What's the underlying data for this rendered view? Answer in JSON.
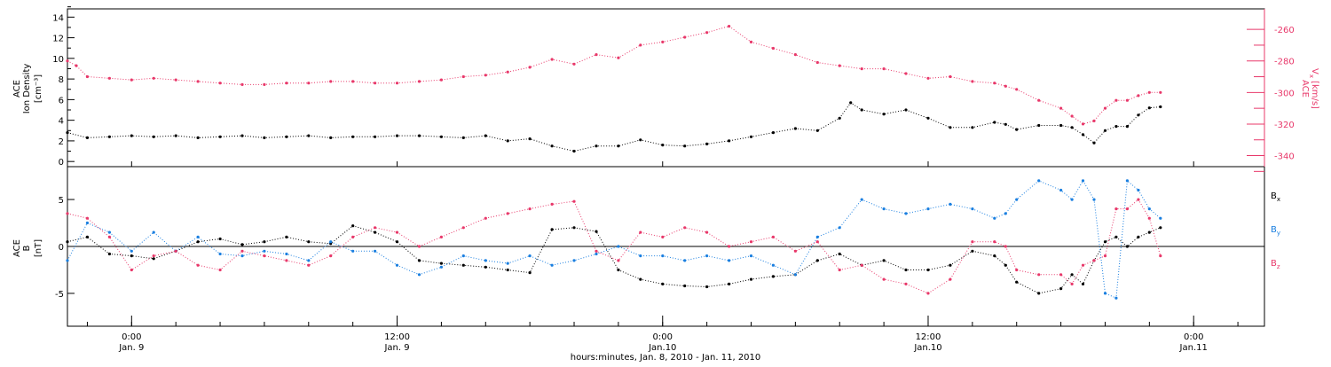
{
  "colors": {
    "black": "#000000",
    "pink": "#e8386a",
    "blue": "#1a7fe0"
  },
  "xaxis": {
    "time_label": "hours:minutes, Jan.  8, 2010 - Jan. 11, 2010",
    "ticks": [
      {
        "hour": 24,
        "time": "0:00",
        "day": "Jan. 9"
      },
      {
        "hour": 36,
        "time": "12:00",
        "day": "Jan. 9"
      },
      {
        "hour": 48,
        "time": "0:00",
        "day": "Jan.10"
      },
      {
        "hour": 60,
        "time": "12:00",
        "day": "Jan.10"
      },
      {
        "hour": 72,
        "time": "0:00",
        "day": "Jan.11"
      }
    ]
  },
  "chart_data": [
    {
      "type": "scatter",
      "panel": "top",
      "xlim_hours": [
        21.1,
        75.2
      ],
      "ylabel": [
        "ACE",
        "Ion Density",
        "[cm⁻³]"
      ],
      "ylim": [
        -0.5,
        14.8
      ],
      "yticks": [
        0,
        2,
        4,
        6,
        8,
        10,
        12,
        14
      ],
      "y2label": [
        "ACE",
        "V",
        "x",
        "[km/s]"
      ],
      "y2lim": [
        -347,
        -247
      ],
      "y2ticks": [
        -340,
        -320,
        -300,
        -280,
        -260
      ],
      "series": [
        {
          "name": "Ion Density",
          "color": "#000000",
          "axis": "left",
          "x_hours": [
            21.1,
            22,
            23,
            24,
            25,
            26,
            27,
            28,
            29,
            30,
            31,
            32,
            33,
            34,
            35,
            36,
            37,
            38,
            39,
            40,
            41,
            42,
            43,
            44,
            45,
            46,
            47,
            48,
            49,
            50,
            51,
            52,
            53,
            54,
            55,
            56,
            56.5,
            57,
            58,
            59,
            60,
            61,
            62,
            63,
            63.5,
            64,
            65,
            66,
            66.5,
            67,
            67.5,
            68,
            68.5,
            69,
            69.5,
            70,
            70.5
          ],
          "values": [
            2.8,
            2.3,
            2.4,
            2.5,
            2.4,
            2.5,
            2.3,
            2.4,
            2.5,
            2.3,
            2.4,
            2.5,
            2.3,
            2.4,
            2.4,
            2.5,
            2.5,
            2.4,
            2.3,
            2.5,
            2.0,
            2.2,
            1.5,
            1.0,
            1.5,
            1.5,
            2.1,
            1.6,
            1.5,
            1.7,
            2.0,
            2.4,
            2.8,
            3.2,
            3.0,
            4.2,
            5.7,
            5.0,
            4.6,
            5.0,
            4.2,
            3.3,
            3.3,
            3.8,
            3.6,
            3.1,
            3.5,
            3.5,
            3.3,
            2.6,
            1.8,
            3.0,
            3.4,
            3.4,
            4.5,
            5.2,
            5.3
          ]
        },
        {
          "name": "Vx",
          "color": "#e8386a",
          "axis": "right",
          "x_hours": [
            21.1,
            21.5,
            22,
            23,
            24,
            25,
            26,
            27,
            28,
            29,
            30,
            31,
            32,
            33,
            34,
            35,
            36,
            37,
            38,
            39,
            40,
            41,
            42,
            43,
            44,
            45,
            46,
            47,
            48,
            49,
            50,
            51,
            52,
            53,
            54,
            55,
            56,
            57,
            58,
            59,
            60,
            61,
            62,
            63,
            63.5,
            64,
            65,
            66,
            66.5,
            67,
            67.5,
            68,
            68.5,
            69,
            69.5,
            70,
            70.5
          ],
          "values": [
            -280,
            -283,
            -290,
            -291,
            -292,
            -291,
            -292,
            -293,
            -294,
            -295,
            -295,
            -294,
            -294,
            -293,
            -293,
            -294,
            -294,
            -293,
            -292,
            -290,
            -289,
            -287,
            -284,
            -279,
            -282,
            -276,
            -278,
            -270,
            -268,
            -265,
            -262,
            -258,
            -268,
            -272,
            -276,
            -281,
            -283,
            -285,
            -285,
            -288,
            -291,
            -290,
            -293,
            -294,
            -296,
            -298,
            -305,
            -310,
            -315,
            -320,
            -318,
            -310,
            -305,
            -305,
            -302,
            -300,
            -300
          ]
        }
      ]
    },
    {
      "type": "scatter",
      "panel": "bottom",
      "xlim_hours": [
        21.1,
        75.2
      ],
      "ylabel": [
        "ACE",
        "B",
        "[nT]"
      ],
      "ylim": [
        -8.5,
        8.5
      ],
      "yticks": [
        -5,
        0,
        5
      ],
      "series": [
        {
          "name": "Bx",
          "color": "#000000",
          "x_hours": [
            21.1,
            22,
            23,
            24,
            25,
            26,
            27,
            28,
            29,
            30,
            31,
            32,
            33,
            34,
            35,
            36,
            37,
            38,
            39,
            40,
            41,
            42,
            43,
            44,
            45,
            46,
            47,
            48,
            49,
            50,
            51,
            52,
            53,
            54,
            55,
            56,
            57,
            58,
            59,
            60,
            61,
            62,
            63,
            63.5,
            64,
            65,
            66,
            66.5,
            67,
            67.5,
            68,
            68.5,
            69,
            69.5,
            70,
            70.5
          ],
          "values": [
            0.5,
            1.0,
            -0.8,
            -1.0,
            -1.3,
            -0.5,
            0.5,
            0.8,
            0.2,
            0.5,
            1.0,
            0.5,
            0.3,
            2.2,
            1.5,
            0.5,
            -1.5,
            -1.8,
            -2.0,
            -2.2,
            -2.5,
            -2.8,
            1.8,
            2.0,
            1.6,
            -2.5,
            -3.5,
            -4.0,
            -4.2,
            -4.3,
            -4.0,
            -3.5,
            -3.2,
            -3.0,
            -1.5,
            -0.8,
            -2.0,
            -1.5,
            -2.5,
            -2.5,
            -2.0,
            -0.5,
            -1.0,
            -2.0,
            -3.8,
            -5.0,
            -4.5,
            -3.0,
            -4.0,
            -1.5,
            0.5,
            1.0,
            0.0,
            1.0,
            1.5,
            2.0
          ]
        },
        {
          "name": "By",
          "color": "#1a7fe0",
          "x_hours": [
            21.1,
            22,
            23,
            24,
            25,
            26,
            27,
            28,
            29,
            30,
            31,
            32,
            33,
            34,
            35,
            36,
            37,
            38,
            39,
            40,
            41,
            42,
            43,
            44,
            45,
            46,
            47,
            48,
            49,
            50,
            51,
            52,
            53,
            54,
            55,
            56,
            57,
            58,
            59,
            60,
            61,
            62,
            63,
            63.5,
            64,
            65,
            66,
            66.5,
            67,
            67.5,
            68,
            68.5,
            69,
            69.5,
            70,
            70.5
          ],
          "values": [
            -1.5,
            2.5,
            1.5,
            -0.5,
            1.5,
            -0.5,
            1.0,
            -0.8,
            -1.0,
            -0.5,
            -0.8,
            -1.5,
            0.5,
            -0.5,
            -0.5,
            -2.0,
            -3.0,
            -2.2,
            -1.0,
            -1.5,
            -1.8,
            -1.0,
            -2.0,
            -1.5,
            -0.8,
            0.0,
            -1.0,
            -1.0,
            -1.5,
            -1.0,
            -1.5,
            -1.0,
            -2.0,
            -3.0,
            1.0,
            2.0,
            5.0,
            4.0,
            3.5,
            4.0,
            4.5,
            4.0,
            3.0,
            3.5,
            5.0,
            7.0,
            6.0,
            5.0,
            7.0,
            5.0,
            -5.0,
            -5.5,
            7.0,
            6.0,
            4.0,
            3.0
          ]
        },
        {
          "name": "Bz",
          "color": "#e8386a",
          "x_hours": [
            21.1,
            22,
            23,
            24,
            25,
            26,
            27,
            28,
            29,
            30,
            31,
            32,
            33,
            34,
            35,
            36,
            37,
            38,
            39,
            40,
            41,
            42,
            43,
            44,
            45,
            46,
            47,
            48,
            49,
            50,
            51,
            52,
            53,
            54,
            55,
            56,
            57,
            58,
            59,
            60,
            61,
            62,
            63,
            63.5,
            64,
            65,
            66,
            66.5,
            67,
            67.5,
            68,
            68.5,
            69,
            69.5,
            70,
            70.5
          ],
          "values": [
            3.5,
            3.0,
            1.0,
            -2.5,
            -1.0,
            -0.5,
            -2.0,
            -2.5,
            -0.5,
            -1.0,
            -1.5,
            -2.0,
            -1.0,
            1.0,
            2.0,
            1.5,
            0.0,
            1.0,
            2.0,
            3.0,
            3.5,
            4.0,
            4.5,
            4.8,
            -0.5,
            -1.5,
            1.5,
            1.0,
            2.0,
            1.5,
            0.0,
            0.5,
            1.0,
            -0.5,
            0.5,
            -2.5,
            -2.0,
            -3.5,
            -4.0,
            -5.0,
            -3.5,
            0.5,
            0.5,
            0.0,
            -2.5,
            -3.0,
            -3.0,
            -4.0,
            -2.0,
            -1.5,
            -1.0,
            4.0,
            4.0,
            5.0,
            3.0,
            -1.0
          ]
        }
      ]
    }
  ]
}
